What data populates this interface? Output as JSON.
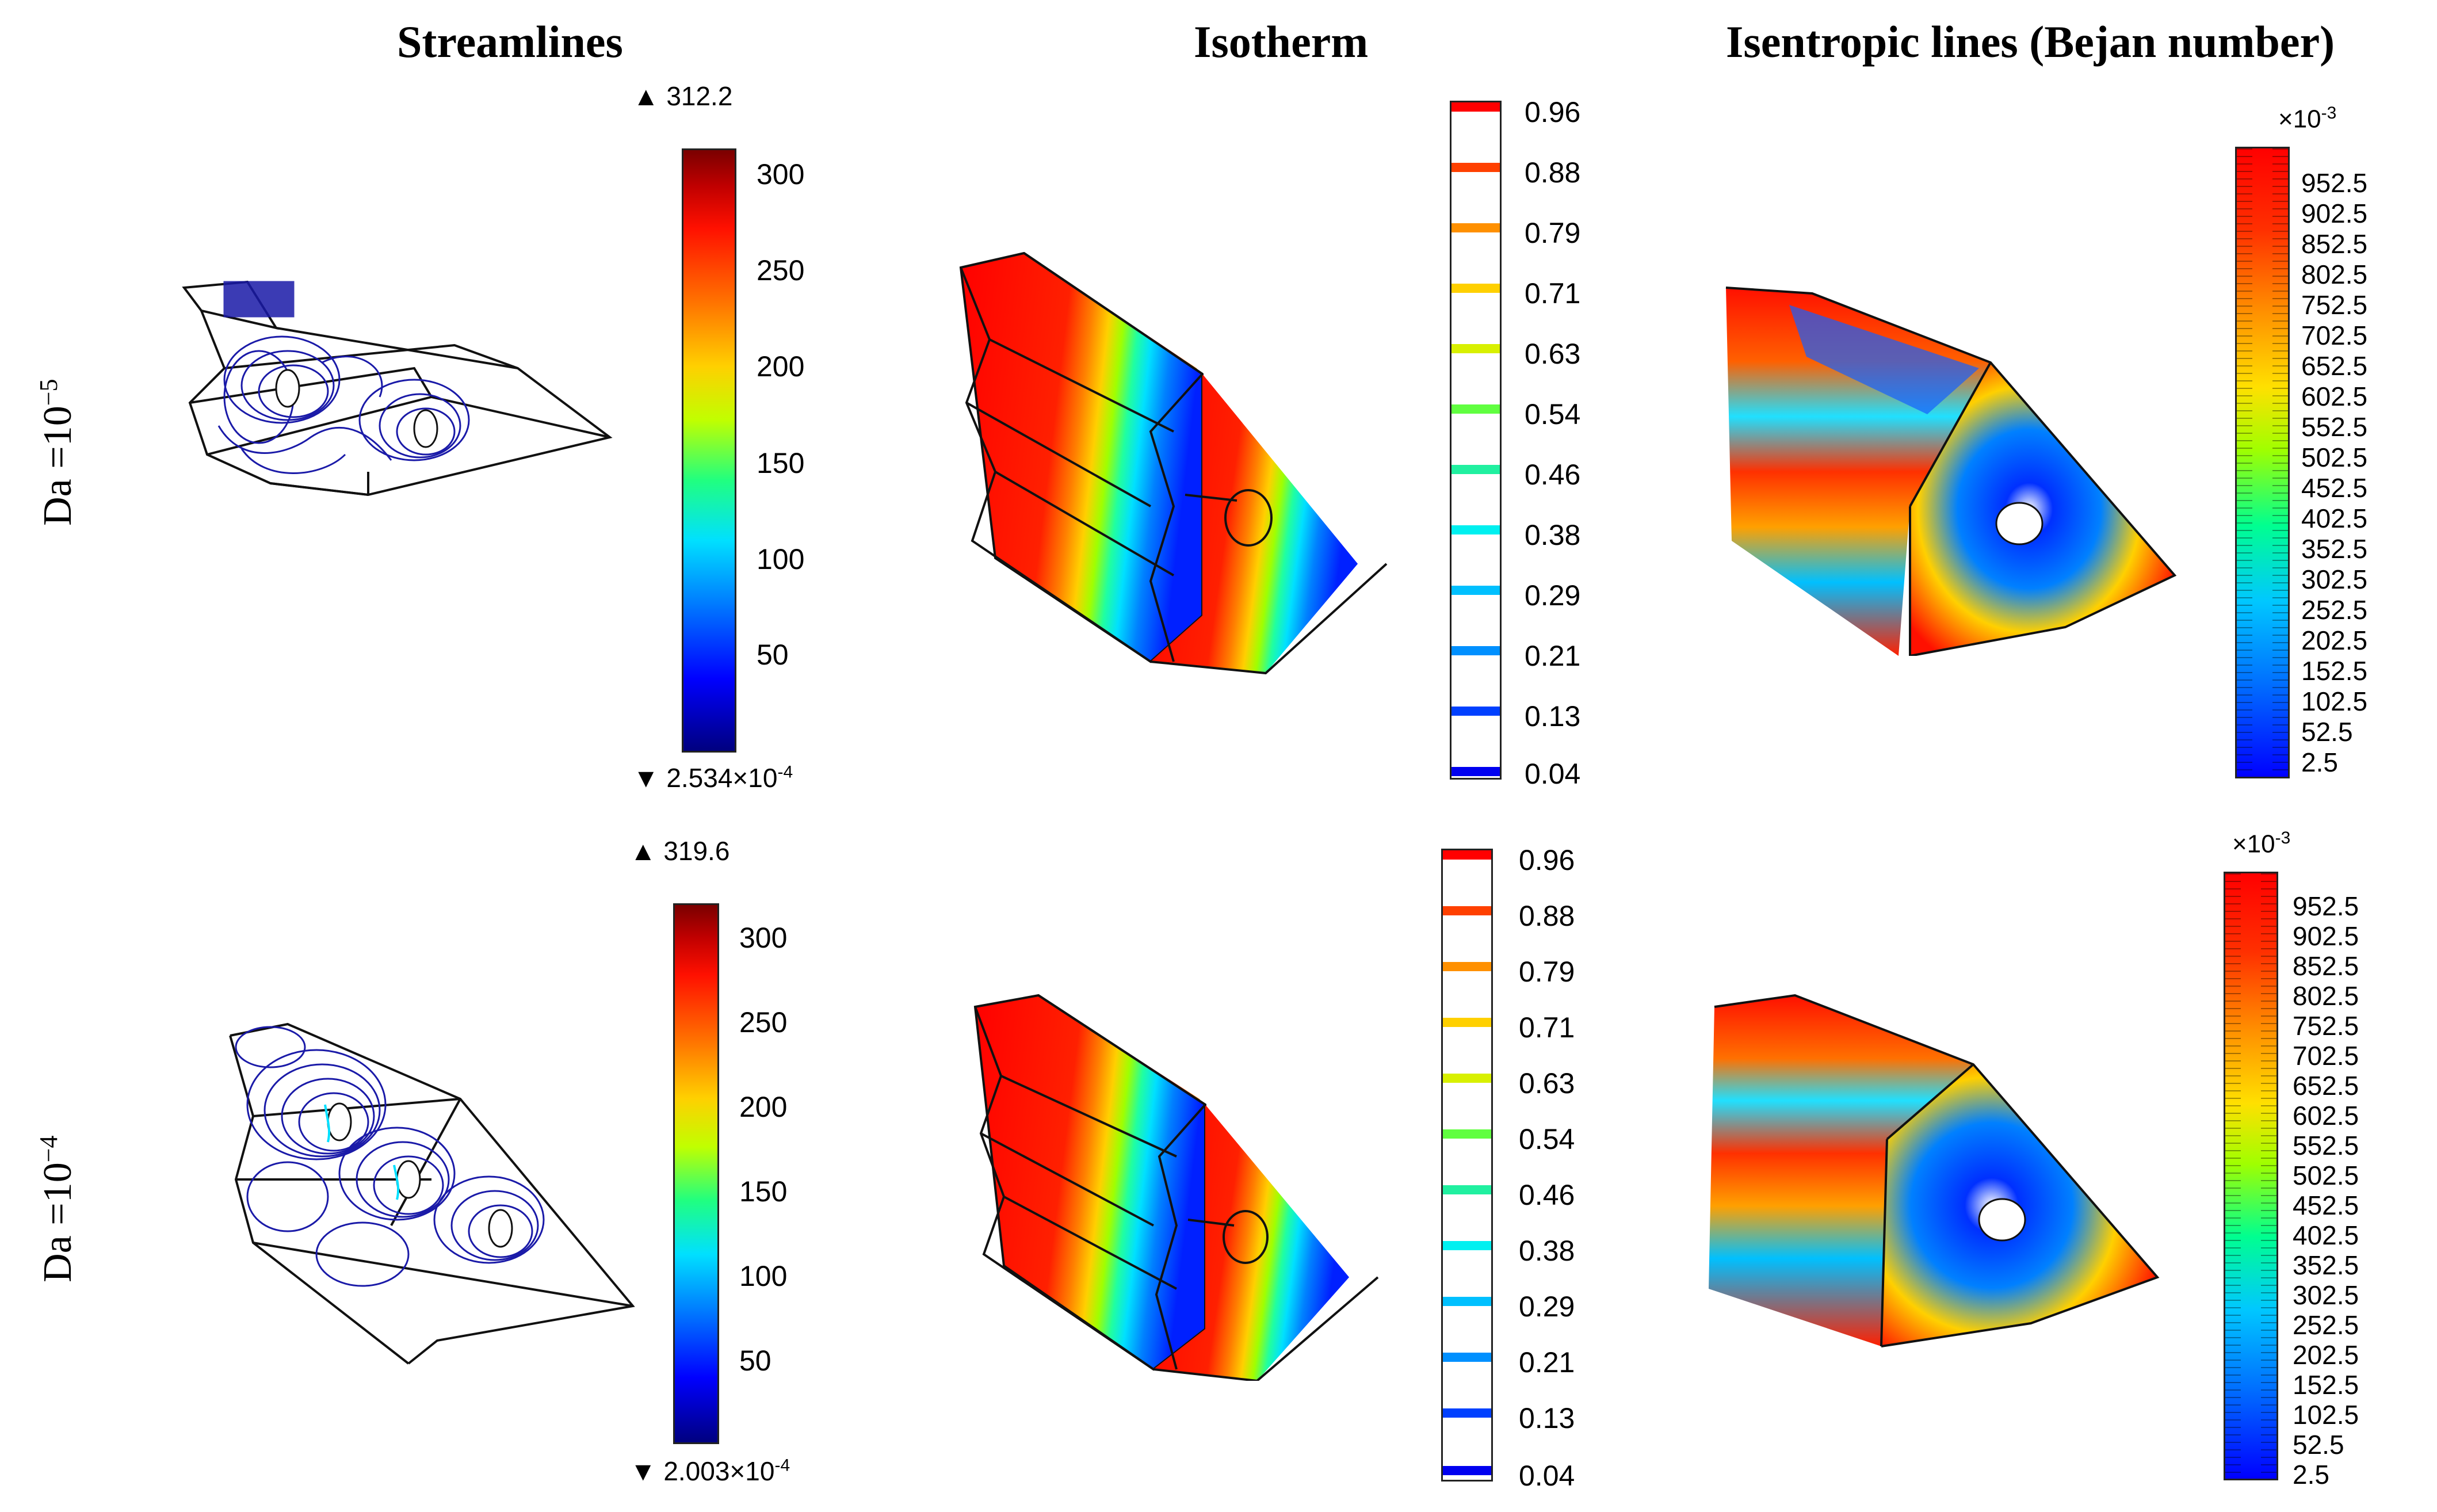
{
  "columns": {
    "streamlines": "Streamlines",
    "isotherm": "Isotherm",
    "isentropic": "Isentropic lines (Bejan number)"
  },
  "rows": [
    {
      "label_base": "Da =10",
      "label_exp": "−5",
      "stream_max": "312.2",
      "stream_min_base": "2.534×10",
      "stream_min_exp": "-4",
      "stream_ticks": [
        "300",
        "250",
        "200",
        "150",
        "100",
        "50"
      ],
      "iso_ticks": [
        "0.96",
        "0.88",
        "0.79",
        "0.71",
        "0.63",
        "0.54",
        "0.46",
        "0.38",
        "0.29",
        "0.21",
        "0.13",
        "0.04"
      ],
      "bejan_mult_base": "×10",
      "bejan_mult_exp": "-3",
      "bejan_ticks": [
        "952.5",
        "902.5",
        "852.5",
        "802.5",
        "752.5",
        "702.5",
        "652.5",
        "602.5",
        "552.5",
        "502.5",
        "452.5",
        "402.5",
        "352.5",
        "302.5",
        "252.5",
        "202.5",
        "152.5",
        "102.5",
        "52.5",
        "2.5"
      ]
    },
    {
      "label_base": "Da =10",
      "label_exp": "−4",
      "stream_max": "319.6",
      "stream_min_base": "2.003×10",
      "stream_min_exp": "-4",
      "stream_ticks": [
        "300",
        "250",
        "200",
        "150",
        "100",
        "50"
      ],
      "iso_ticks": [
        "0.96",
        "0.88",
        "0.79",
        "0.71",
        "0.63",
        "0.54",
        "0.46",
        "0.38",
        "0.29",
        "0.21",
        "0.13",
        "0.04"
      ],
      "bejan_mult_base": "×10",
      "bejan_mult_exp": "-3",
      "bejan_ticks": [
        "952.5",
        "902.5",
        "852.5",
        "802.5",
        "752.5",
        "702.5",
        "652.5",
        "602.5",
        "552.5",
        "502.5",
        "452.5",
        "402.5",
        "352.5",
        "302.5",
        "252.5",
        "202.5",
        "152.5",
        "102.5",
        "52.5",
        "2.5"
      ]
    }
  ],
  "iso_line_colors": [
    "#ff0000",
    "#ff4000",
    "#ff9000",
    "#ffd000",
    "#d8f000",
    "#60ff40",
    "#20f0a0",
    "#00f0f0",
    "#00c0ff",
    "#0090ff",
    "#0040ff",
    "#0000f0"
  ],
  "colors": {
    "streamline": "#1a1aa8",
    "outline": "#111111"
  }
}
